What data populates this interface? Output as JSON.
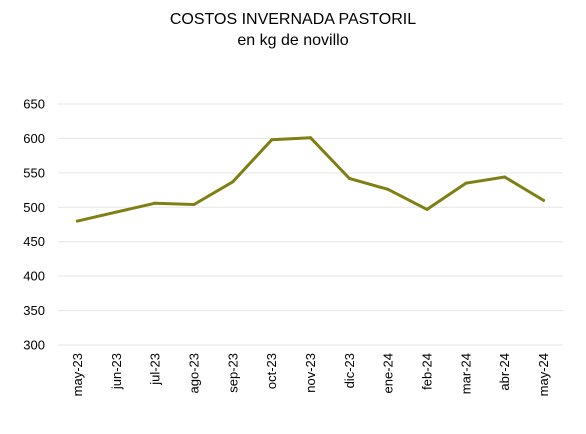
{
  "chart_data": {
    "type": "line",
    "title": "COSTOS INVERNADA PASTORIL",
    "subtitle": "en kg de novillo",
    "xlabel": "",
    "ylabel": "",
    "categories": [
      "may-23",
      "jun-23",
      "jul-23",
      "ago-23",
      "sep-23",
      "oct-23",
      "nov-23",
      "dic-23",
      "ene-24",
      "feb-24",
      "mar-24",
      "abr-24",
      "may-24"
    ],
    "series": [
      {
        "values": [
          480,
          493,
          506,
          504,
          537,
          598,
          601,
          542,
          526,
          497,
          535,
          544,
          510
        ]
      }
    ],
    "ylim": [
      300,
      650
    ],
    "yticks": [
      300,
      350,
      400,
      450,
      500,
      550,
      600,
      650
    ],
    "grid": true,
    "legend": "none",
    "colors": {
      "series": "#7f7f14",
      "grid": "#e6e6e6"
    }
  }
}
